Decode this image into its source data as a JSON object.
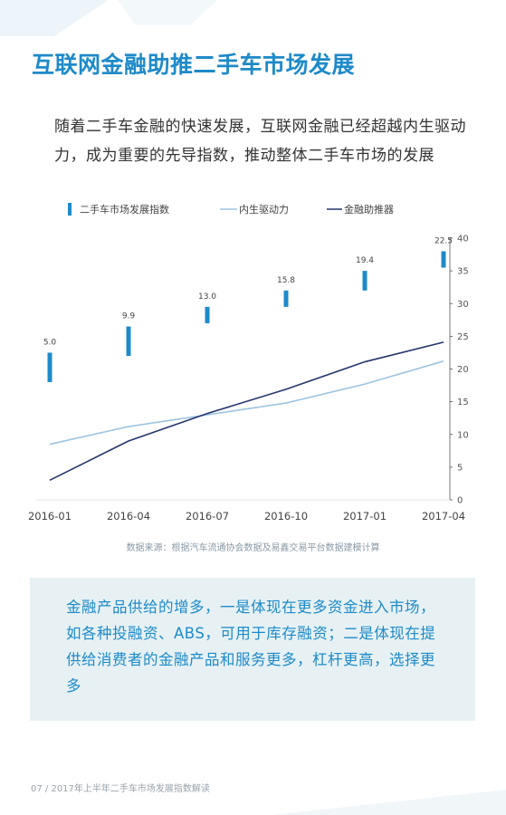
{
  "page": {
    "title": "互联网金融助推二手车市场发展",
    "subtitle": "随着二手车金融的快速发展，互联网金融已经超越内生驱动力，成为重要的先导指数，推动整体二手车市场的发展",
    "source": "数据来源：根据汽车流通协会数据及易鑫交易平台数据建模计算",
    "callout": "金融产品供给的增多，一是体现在更多资金进入市场，如各种投融资、ABS，可用于库存融资；二是体现在提供给消费者的金融产品和服务更多，杠杆更高，选择更多",
    "footer": "07  /  2017年上半年二手车市场发展指数解读"
  },
  "colors": {
    "title": "#1e8ac9",
    "bar": "#1e8ac9",
    "line_internal": "#9ec4e0",
    "line_finance": "#27366e",
    "callout_bg": "#e7f1f4"
  },
  "chart_data": {
    "type": "bar",
    "categories": [
      "2016-01",
      "2016-04",
      "2016-07",
      "2016-10",
      "2017-01",
      "2017-04"
    ],
    "ylim": [
      0,
      40
    ],
    "yticks": [
      0,
      5,
      10,
      15,
      20,
      25,
      30,
      35,
      40
    ],
    "y_axis_position": "right",
    "legend_position": "top",
    "grid": false,
    "series": [
      {
        "name": "二手车市场发展指数",
        "type": "bar",
        "values": [
          5.0,
          9.9,
          13.0,
          15.8,
          19.4,
          22.5
        ],
        "labels": [
          "5.0",
          "9.9",
          "13.0",
          "15.8",
          "19.4",
          "22.5"
        ],
        "drawn_ranges": [
          [
            18,
            22.5
          ],
          [
            22,
            26.5
          ],
          [
            27,
            29.5
          ],
          [
            29.5,
            32
          ],
          [
            32,
            35
          ],
          [
            35.5,
            38
          ]
        ]
      },
      {
        "name": "内生驱动力",
        "type": "line",
        "values": [
          8.5,
          11.2,
          13.0,
          14.8,
          17.7,
          21.2
        ]
      },
      {
        "name": "金融助推器",
        "type": "line",
        "values": [
          3.0,
          9.0,
          13.2,
          16.9,
          21.1,
          24.1
        ]
      }
    ]
  }
}
